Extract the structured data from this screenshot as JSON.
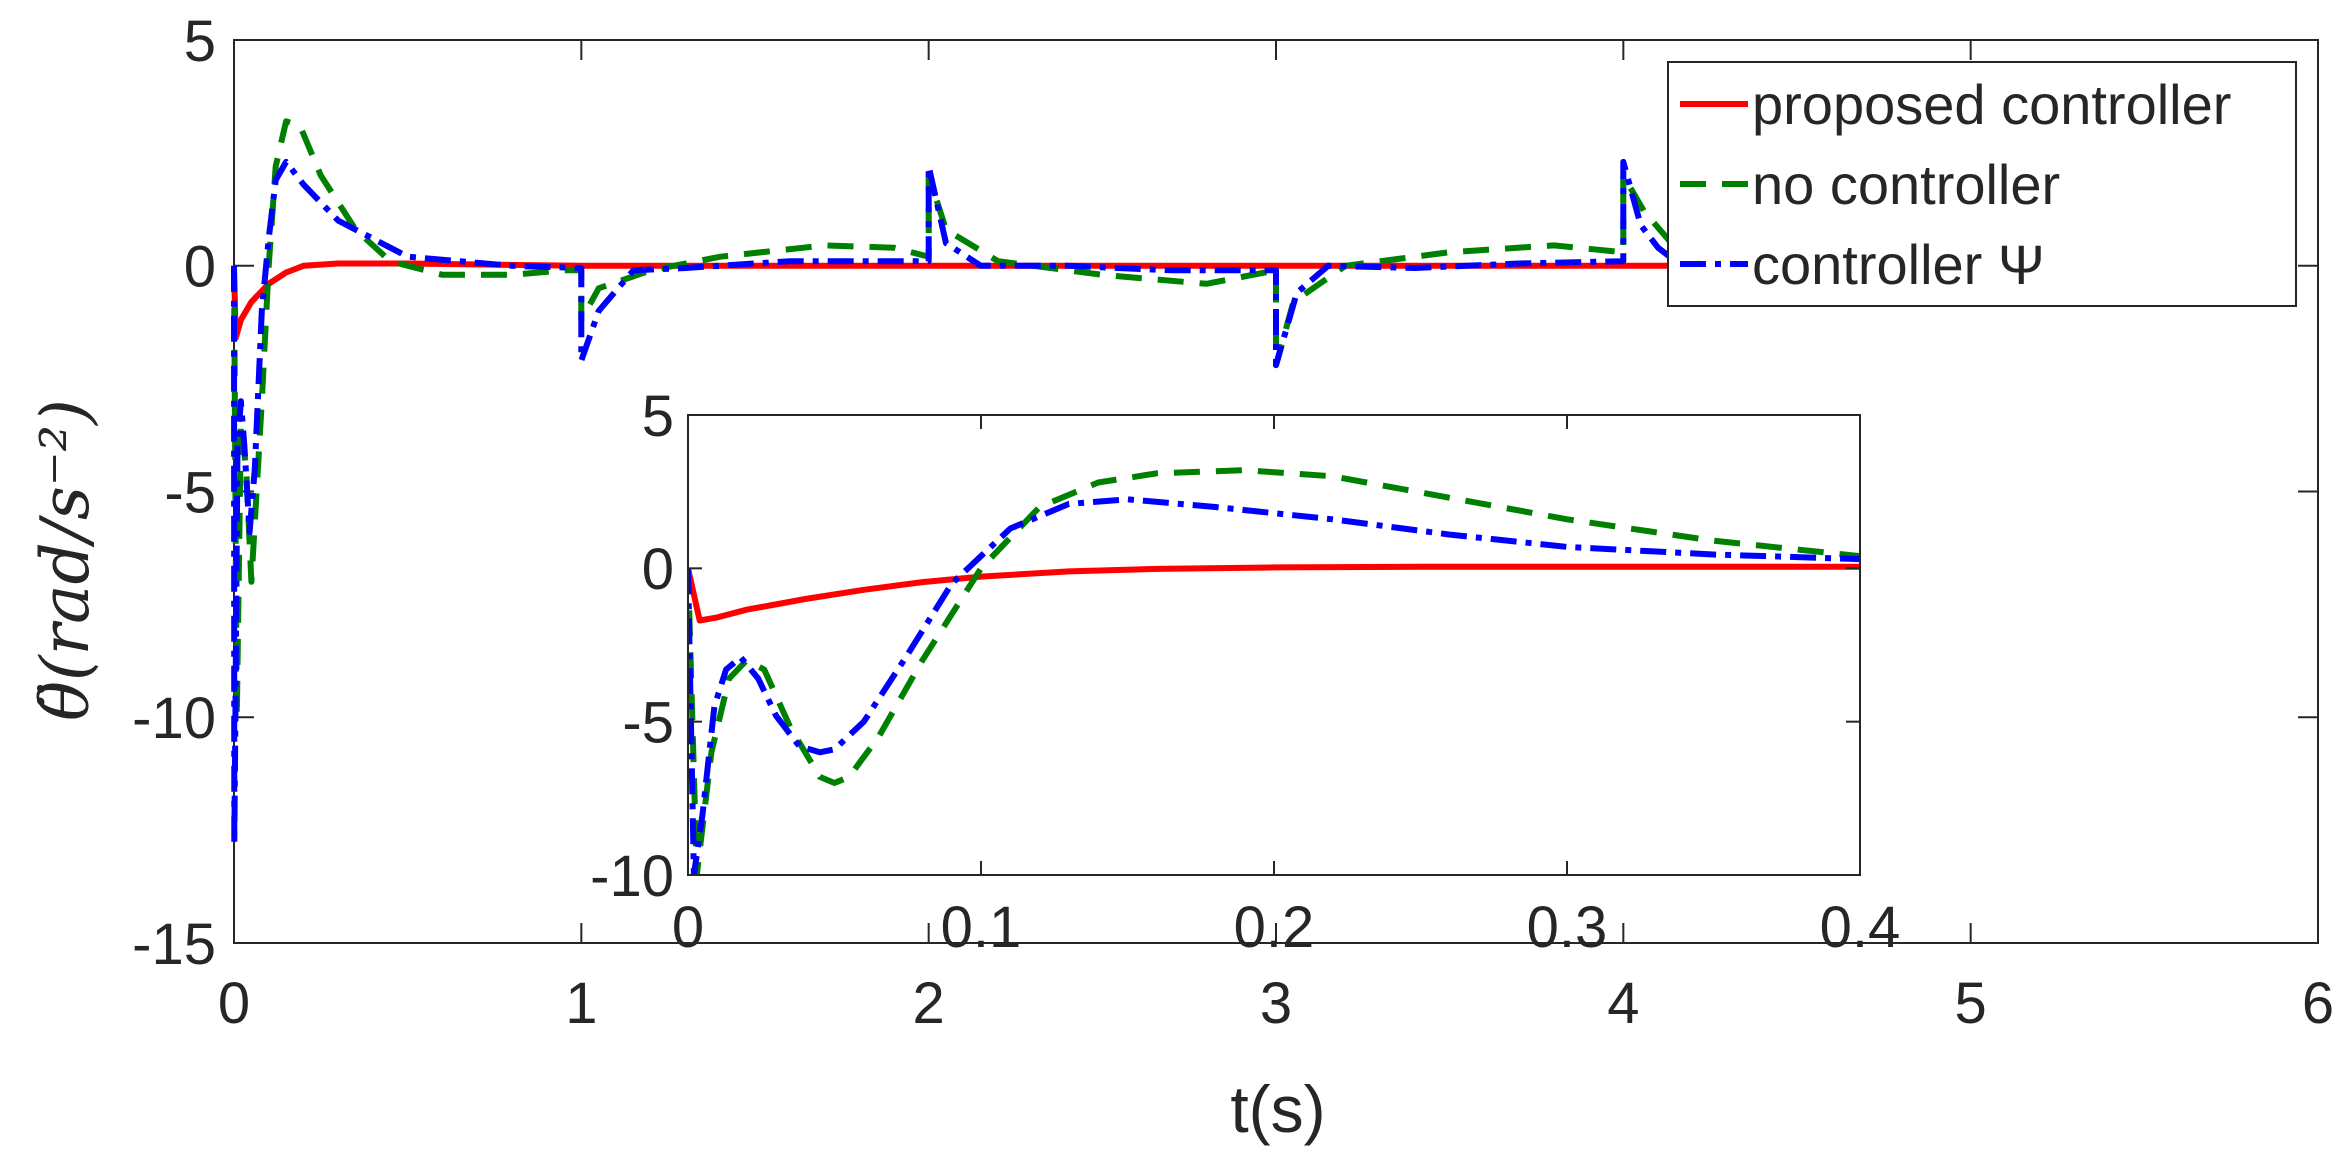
{
  "chart_data": [
    {
      "type": "line",
      "role": "main",
      "xlabel": "t(s)",
      "ylabel": "θ̈(rad/s⁻²)",
      "xlim": [
        0,
        6
      ],
      "ylim": [
        -15,
        5
      ],
      "xticks": [
        0,
        1,
        2,
        3,
        4,
        5,
        6
      ],
      "yticks": [
        -15,
        -10,
        -5,
        0,
        5
      ],
      "xtick_labels": [
        "0",
        "1",
        "2",
        "3",
        "4",
        "5",
        "6"
      ],
      "ytick_labels": [
        "-15",
        "-10",
        "-5",
        "0",
        "5"
      ],
      "grid": false,
      "legend_position": "top-right",
      "series": [
        {
          "name": "proposed controller",
          "color": "#ff0000",
          "style": "solid",
          "x": [
            0,
            0.005,
            0.02,
            0.05,
            0.1,
            0.15,
            0.2,
            0.3,
            0.5,
            1.0,
            2.0,
            3.0,
            4.0,
            4.4
          ],
          "y": [
            0,
            -1.6,
            -1.2,
            -0.8,
            -0.4,
            -0.15,
            0,
            0.05,
            0.05,
            0,
            0,
            0,
            0,
            0
          ]
        },
        {
          "name": "no controller",
          "color": "#008000",
          "style": "dashed",
          "x": [
            0,
            0.008,
            0.02,
            0.035,
            0.05,
            0.08,
            0.1,
            0.12,
            0.15,
            0.19,
            0.25,
            0.35,
            0.45,
            0.6,
            0.8,
            0.95,
            1.0,
            1.0,
            1.05,
            1.2,
            1.4,
            1.7,
            1.9,
            2.0,
            2.0,
            2.05,
            2.2,
            2.5,
            2.8,
            3.0,
            3.0,
            3.05,
            3.2,
            3.5,
            3.8,
            4.0,
            4.0,
            4.06,
            4.15,
            4.2
          ],
          "y": [
            0,
            -10,
            -3.5,
            -4.5,
            -7,
            -3,
            0,
            2.2,
            3.2,
            3.1,
            2.0,
            0.8,
            0.1,
            -0.2,
            -0.2,
            -0.1,
            -0.1,
            -1.2,
            -0.5,
            -0.1,
            0.2,
            0.45,
            0.4,
            0.2,
            2.0,
            0.8,
            0.1,
            -0.2,
            -0.4,
            -0.1,
            -2.2,
            -0.8,
            0.0,
            0.3,
            0.45,
            0.3,
            2.0,
            1.2,
            0.4,
            0.0
          ]
        },
        {
          "name": "controller Ψ",
          "color": "#0000ff",
          "style": "dashdot",
          "x": [
            0,
            0.001,
            0.004,
            0.01,
            0.02,
            0.03,
            0.045,
            0.06,
            0.08,
            0.1,
            0.12,
            0.15,
            0.2,
            0.3,
            0.5,
            0.8,
            1.0,
            1.0,
            1.05,
            1.15,
            1.3,
            1.6,
            2.0,
            2.0,
            2.05,
            2.15,
            2.4,
            2.7,
            3.0,
            3.0,
            3.06,
            3.15,
            3.4,
            3.7,
            4.0,
            4.0,
            4.05,
            4.1,
            4.15
          ],
          "y": [
            0,
            -12.8,
            -10,
            -4,
            -3.0,
            -4.0,
            -5.9,
            -4.5,
            -1.0,
            0.6,
            1.9,
            2.3,
            1.8,
            1.0,
            0.2,
            0.0,
            -0.05,
            -2.1,
            -1.0,
            -0.1,
            -0.05,
            0.1,
            0.1,
            2.2,
            0.5,
            0.0,
            0.0,
            -0.1,
            -0.1,
            -2.2,
            -0.6,
            0.0,
            -0.05,
            0.05,
            0.1,
            2.3,
            0.9,
            0.4,
            0.1
          ]
        }
      ]
    },
    {
      "type": "line",
      "role": "inset",
      "xlim": [
        0,
        0.4
      ],
      "ylim": [
        -10,
        5
      ],
      "xticks": [
        0,
        0.1,
        0.2,
        0.3,
        0.4
      ],
      "yticks": [
        -10,
        -5,
        0,
        5
      ],
      "xtick_labels": [
        "0",
        "0.1",
        "0.2",
        "0.3",
        "0.4"
      ],
      "ytick_labels": [
        "-10",
        "-5",
        "0",
        "5"
      ],
      "grid": false,
      "series": [
        {
          "name": "proposed controller",
          "color": "#ff0000",
          "style": "solid",
          "x": [
            0,
            0.004,
            0.01,
            0.02,
            0.04,
            0.06,
            0.08,
            0.1,
            0.13,
            0.16,
            0.2,
            0.25,
            0.3,
            0.35,
            0.4
          ],
          "y": [
            0,
            -1.7,
            -1.6,
            -1.35,
            -1.0,
            -0.7,
            -0.45,
            -0.27,
            -0.1,
            -0.02,
            0.03,
            0.05,
            0.05,
            0.05,
            0.05
          ]
        },
        {
          "name": "no controller",
          "color": "#008000",
          "style": "dashed",
          "x": [
            0,
            0.003,
            0.008,
            0.014,
            0.02,
            0.026,
            0.035,
            0.045,
            0.05,
            0.055,
            0.065,
            0.08,
            0.1,
            0.12,
            0.14,
            0.16,
            0.19,
            0.22,
            0.26,
            0.3,
            0.35,
            0.4
          ],
          "y": [
            0,
            -10,
            -6,
            -3.6,
            -3.0,
            -3.3,
            -5.2,
            -6.8,
            -7.0,
            -6.8,
            -5.5,
            -3.0,
            0.0,
            2.0,
            2.8,
            3.1,
            3.2,
            3.0,
            2.3,
            1.6,
            0.9,
            0.4
          ]
        },
        {
          "name": "controller Ψ",
          "color": "#0000ff",
          "style": "dashdot",
          "x": [
            0,
            0.002,
            0.005,
            0.009,
            0.013,
            0.018,
            0.024,
            0.03,
            0.038,
            0.045,
            0.05,
            0.06,
            0.075,
            0.09,
            0.11,
            0.13,
            0.15,
            0.18,
            0.22,
            0.26,
            0.3,
            0.35,
            0.4
          ],
          "y": [
            0,
            -10,
            -8,
            -4.5,
            -3.3,
            -2.9,
            -3.6,
            -4.8,
            -5.8,
            -6.0,
            -5.9,
            -5.0,
            -2.8,
            -0.5,
            1.3,
            2.1,
            2.25,
            2.0,
            1.6,
            1.1,
            0.7,
            0.45,
            0.3
          ]
        }
      ]
    }
  ]
}
